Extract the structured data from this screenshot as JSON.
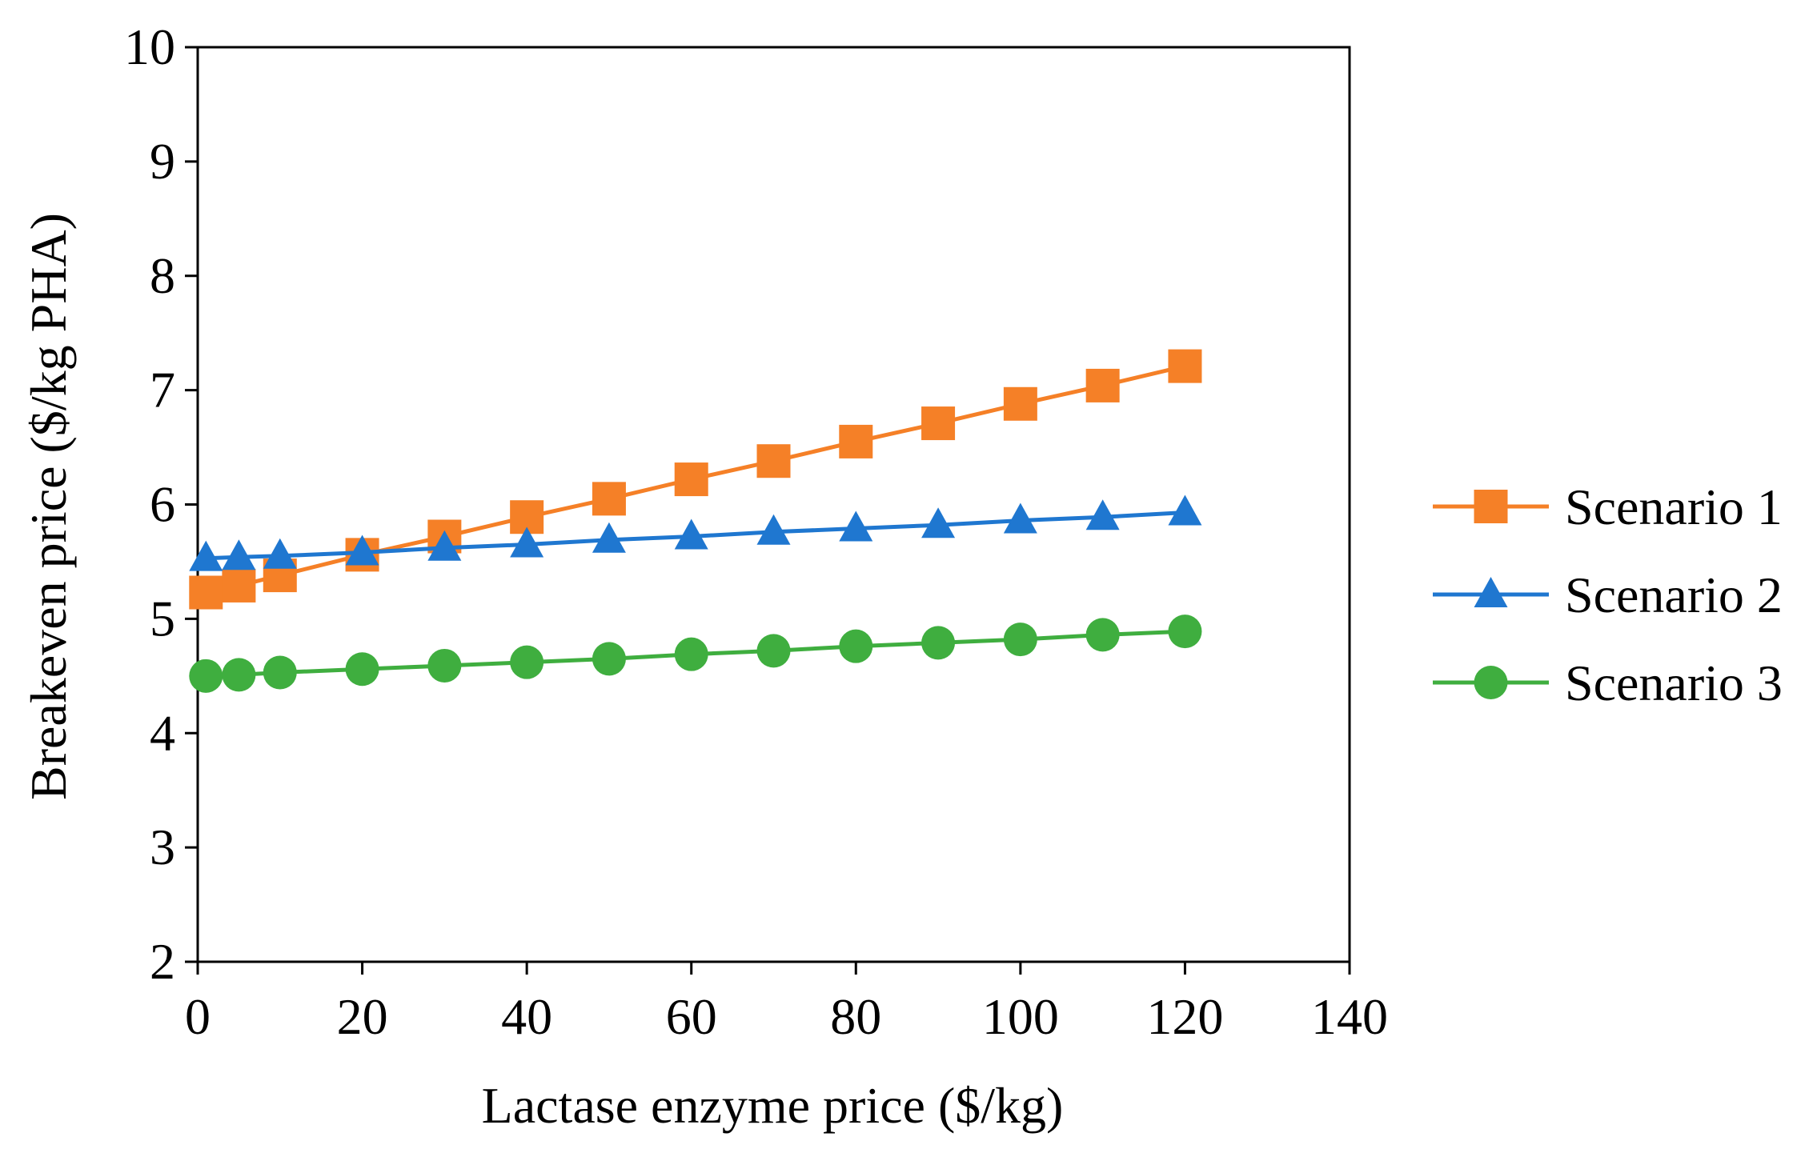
{
  "chart_data": {
    "type": "line",
    "title": "",
    "xlabel": "Lactase enzyme price ($/kg)",
    "ylabel": "Breakeven price ($/kg PHA)",
    "xlim": [
      0,
      140
    ],
    "ylim": [
      2,
      10
    ],
    "xticks": [
      0,
      20,
      40,
      60,
      80,
      100,
      120,
      140
    ],
    "yticks": [
      2,
      3,
      4,
      5,
      6,
      7,
      8,
      9,
      10
    ],
    "grid": false,
    "legend_position": "right",
    "x": [
      1,
      5,
      10,
      20,
      30,
      40,
      50,
      60,
      70,
      80,
      90,
      100,
      110,
      120
    ],
    "series": [
      {
        "name": "Scenario 1",
        "marker": "square",
        "color": "#F58027",
        "values": [
          5.23,
          5.29,
          5.38,
          5.56,
          5.72,
          5.89,
          6.05,
          6.22,
          6.38,
          6.55,
          6.71,
          6.88,
          7.04,
          7.21
        ]
      },
      {
        "name": "Scenario 2",
        "marker": "triangle",
        "color": "#1F77D0",
        "values": [
          5.53,
          5.54,
          5.55,
          5.58,
          5.62,
          5.65,
          5.69,
          5.72,
          5.76,
          5.79,
          5.82,
          5.86,
          5.89,
          5.93
        ]
      },
      {
        "name": "Scenario 3",
        "marker": "circle",
        "color": "#3FAE3F",
        "values": [
          4.5,
          4.51,
          4.53,
          4.56,
          4.59,
          4.62,
          4.65,
          4.69,
          4.72,
          4.76,
          4.79,
          4.82,
          4.86,
          4.89
        ]
      }
    ]
  }
}
